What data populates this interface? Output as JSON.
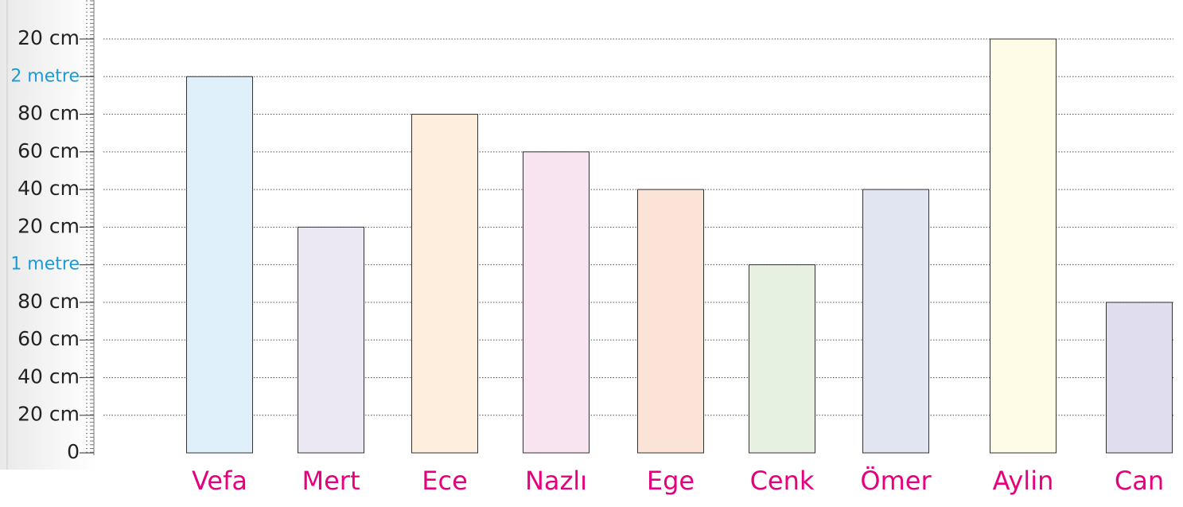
{
  "chart_data": {
    "type": "bar",
    "categories": [
      "Vefa",
      "Mert",
      "Ece",
      "Nazlı",
      "Ege",
      "Cenk",
      "Ömer",
      "Aylin",
      "Can"
    ],
    "values": [
      200,
      120,
      180,
      160,
      140,
      100,
      140,
      220,
      80
    ],
    "colors": [
      "#dff0fb",
      "#ebe8f4",
      "#fdeedd",
      "#f8e3f0",
      "#fce3d8",
      "#e6f1e2",
      "#e1e5f2",
      "#fefbe6",
      "#e0ddef"
    ],
    "label_color": "#e6007e",
    "ylim": [
      0,
      220
    ],
    "yticks": [
      0,
      {
        "value": 20,
        "label": "20 cm"
      },
      {
        "value": 40,
        "label": "40 cm"
      },
      {
        "value": 60,
        "label": "60 cm"
      },
      {
        "value": 80,
        "label": "80 cm"
      },
      {
        "value": 100,
        "label": "1 metre"
      },
      {
        "value": 120,
        "label": "20 cm"
      },
      {
        "value": 140,
        "label": "40 cm"
      },
      {
        "value": 160,
        "label": "60 cm"
      },
      {
        "value": 180,
        "label": "80 cm"
      },
      {
        "value": 200,
        "label": "2 metre"
      },
      {
        "value": 220,
        "label": "20 cm"
      }
    ],
    "grid": true
  }
}
